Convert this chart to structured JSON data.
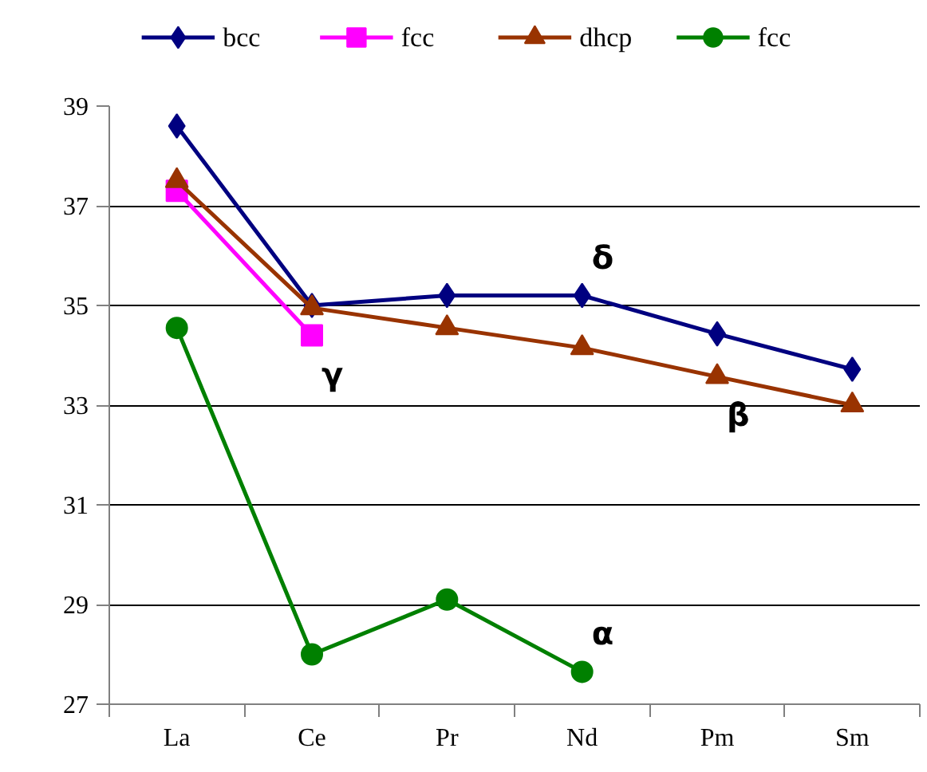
{
  "chart_data": {
    "type": "line",
    "categories": [
      "La",
      "Ce",
      "Pr",
      "Nd",
      "Pm",
      "Sm"
    ],
    "series": [
      {
        "name": "bcc",
        "color": "#000080",
        "marker": "diamond",
        "values": [
          38.6,
          35.0,
          35.2,
          35.2,
          34.43,
          33.72
        ]
      },
      {
        "name": "fcc",
        "color": "#ff00ff",
        "marker": "square",
        "values": [
          37.3,
          34.4,
          null,
          null,
          null,
          null
        ]
      },
      {
        "name": "dhcp",
        "color": "#993300",
        "marker": "triangle",
        "values": [
          37.5,
          34.95,
          34.55,
          34.15,
          33.57,
          33.0
        ]
      },
      {
        "name": "fcc",
        "color": "#008000",
        "marker": "circle",
        "values": [
          34.55,
          28.0,
          29.1,
          27.65,
          null,
          null
        ]
      }
    ],
    "ylim": [
      27,
      39
    ],
    "yticks": [
      27,
      29,
      31,
      33,
      35,
      37,
      39
    ],
    "grid": "y",
    "legend": "top",
    "annotations": [
      {
        "text": "γ",
        "x": "Ce",
        "y": 34.4
      },
      {
        "text": "δ",
        "x": "Nd",
        "y": 35.2
      },
      {
        "text": "β",
        "x": "Pm",
        "y": 33.57
      },
      {
        "text": "α",
        "x": "Nd",
        "y": 27.65
      }
    ]
  }
}
